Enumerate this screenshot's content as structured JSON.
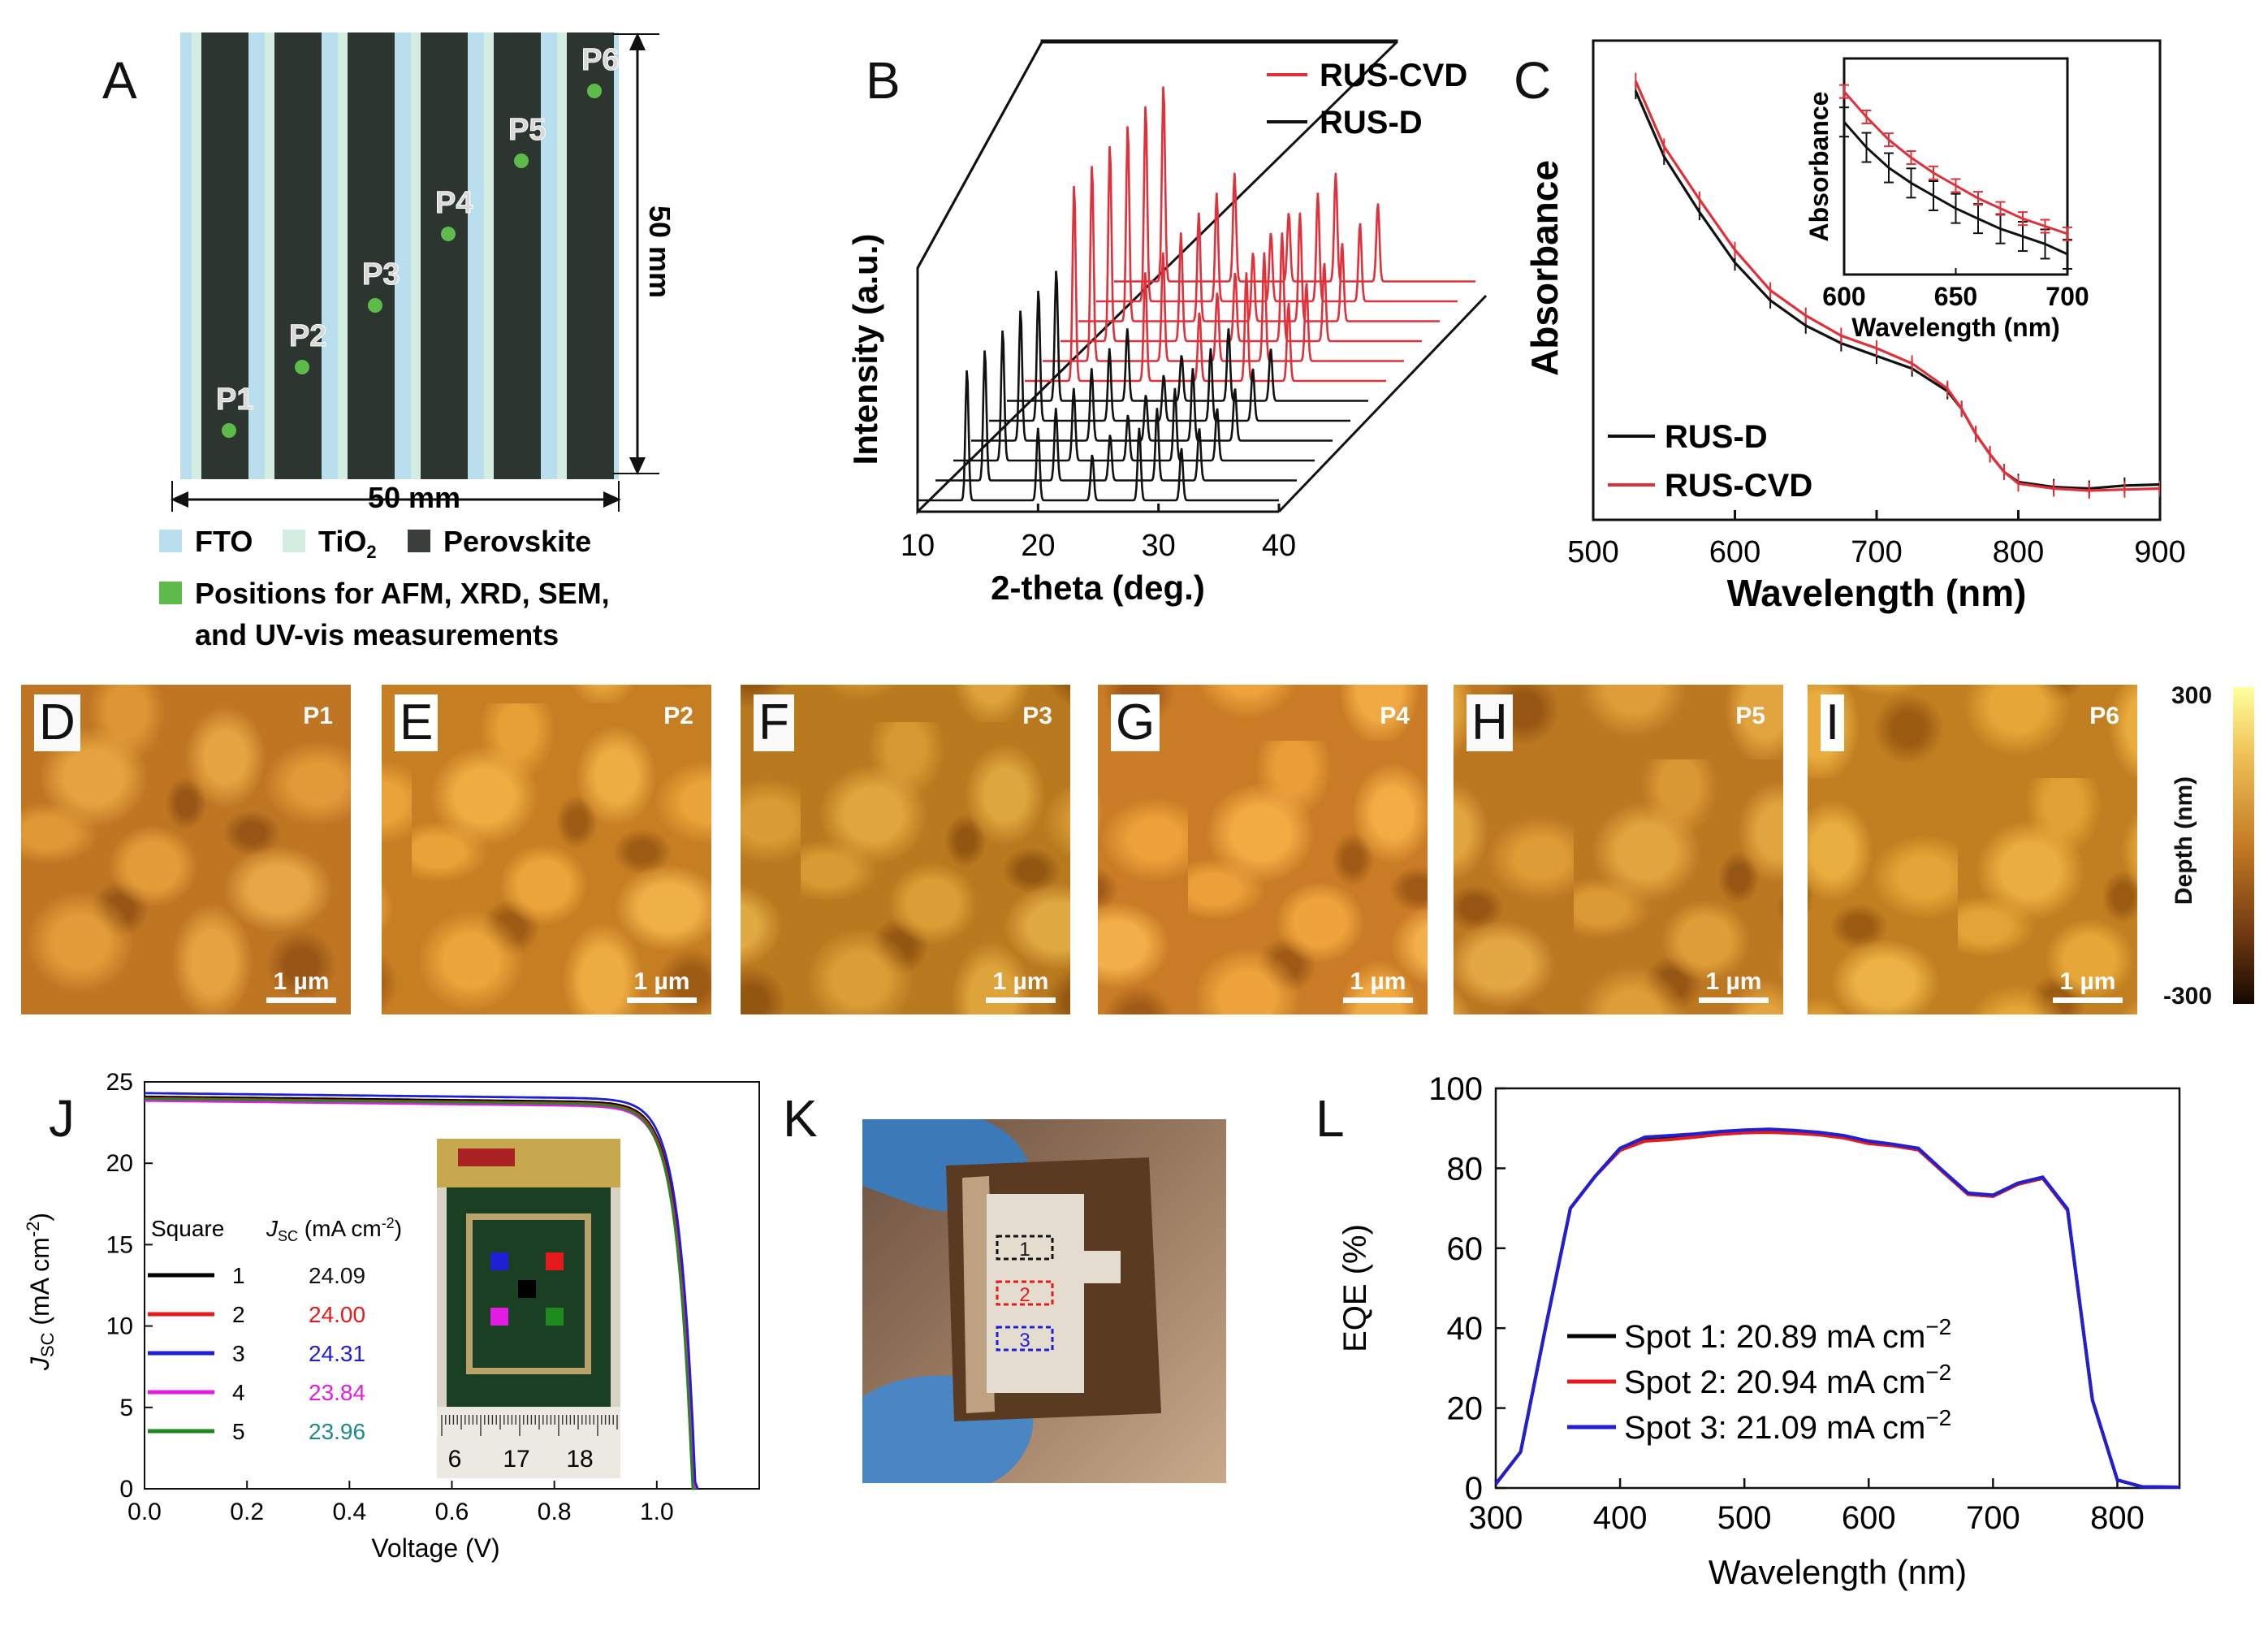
{
  "panels": {
    "A": {
      "label": "A",
      "positions": [
        "P1",
        "P2",
        "P3",
        "P4",
        "P5",
        "P6"
      ],
      "dim_h": "50 mm",
      "dim_v": "50 mm",
      "legend": {
        "fto": "FTO",
        "tio2": "TiO",
        "tio2_sub": "2",
        "perovskite": "Perovskite",
        "positions_line1": "Positions for AFM, XRD, SEM,",
        "positions_line2": "and UV-vis measurements"
      },
      "colors": {
        "fto": "#b9dfee",
        "tio2": "#d3eee0",
        "perovskite": "#2d3530",
        "dot": "#5dbb4a"
      }
    },
    "B": {
      "label": "B"
    },
    "C": {
      "label": "C"
    },
    "afm": [
      {
        "label": "D",
        "pos": "P1",
        "scale": "1 µm"
      },
      {
        "label": "E",
        "pos": "P2",
        "scale": "1 µm"
      },
      {
        "label": "F",
        "pos": "P3",
        "scale": "1 µm"
      },
      {
        "label": "G",
        "pos": "P4",
        "scale": "1 µm"
      },
      {
        "label": "H",
        "pos": "P5",
        "scale": "1 µm"
      },
      {
        "label": "I",
        "pos": "P6",
        "scale": "1 µm"
      }
    ],
    "colorbar": {
      "max": "300",
      "min": "-300",
      "label": "Depth (nm)"
    },
    "J": {
      "label": "J",
      "table_header_square": "Square",
      "table_header_jsc": "J",
      "table_header_jsc_sub": "SC",
      "table_header_unit": " (mA cm",
      "table_header_unit_sup": "-2",
      "table_header_close": ")",
      "ruler": [
        "6",
        "17",
        "18"
      ],
      "rows": [
        {
          "n": "1",
          "jsc": "24.09",
          "color": "#000000",
          "text_color": "#111111"
        },
        {
          "n": "2",
          "jsc": "24.00",
          "color": "#e41a1c",
          "text_color": "#e41a1c"
        },
        {
          "n": "3",
          "jsc": "24.31",
          "color": "#1f1fd6",
          "text_color": "#1f1fd6"
        },
        {
          "n": "4",
          "jsc": "23.84",
          "color": "#e31ce3",
          "text_color": "#e31ce3"
        },
        {
          "n": "5",
          "jsc": "23.96",
          "color": "#1e8a1e",
          "text_color": "#1e8a8a"
        }
      ]
    },
    "K": {
      "label": "K",
      "spots": [
        "1",
        "2",
        "3"
      ]
    },
    "L": {
      "label": "L"
    }
  },
  "chart_data": [
    {
      "panel": "B",
      "type": "line",
      "xlabel": "2-theta (deg.)",
      "ylabel": "Intensity (a.u.)",
      "xlim": [
        10,
        40
      ],
      "x_ticks": [
        10,
        20,
        30,
        40
      ],
      "legend": "top-right",
      "series": [
        {
          "name": "RUS-CVD",
          "color": "#e0303a",
          "traces": 6
        },
        {
          "name": "RUS-D",
          "color": "#111111",
          "traces": 6
        }
      ],
      "peaks_2theta": [
        14.1,
        20.0,
        24.5,
        28.4,
        31.9,
        40.6
      ]
    },
    {
      "panel": "C",
      "type": "line",
      "xlabel": "Wavelength (nm)",
      "ylabel": "Absorbance",
      "xlim": [
        500,
        900
      ],
      "x_ticks": [
        500,
        600,
        700,
        800,
        900
      ],
      "legend": "bottom-left",
      "series": [
        {
          "name": "RUS-D",
          "color": "#111111",
          "x": [
            530,
            550,
            575,
            600,
            625,
            650,
            675,
            700,
            725,
            750,
            760,
            770,
            780,
            790,
            800,
            825,
            850,
            875,
            900
          ],
          "y": [
            1.0,
            0.87,
            0.76,
            0.66,
            0.585,
            0.535,
            0.5,
            0.475,
            0.45,
            0.405,
            0.37,
            0.32,
            0.28,
            0.245,
            0.225,
            0.215,
            0.212,
            0.218,
            0.22
          ]
        },
        {
          "name": "RUS-CVD",
          "color": "#e0303a",
          "x": [
            530,
            550,
            575,
            600,
            625,
            650,
            675,
            700,
            725,
            750,
            760,
            770,
            780,
            790,
            800,
            825,
            850,
            875,
            900
          ],
          "y": [
            1.02,
            0.89,
            0.785,
            0.685,
            0.605,
            0.555,
            0.515,
            0.49,
            0.46,
            0.41,
            0.37,
            0.32,
            0.28,
            0.245,
            0.222,
            0.212,
            0.208,
            0.21,
            0.212
          ]
        }
      ],
      "inset": {
        "xlabel": "Wavelength (nm)",
        "ylabel": "Absorbance",
        "xlim": [
          600,
          700
        ],
        "x_ticks": [
          600,
          650,
          700
        ],
        "series": [
          {
            "name": "RUS-D",
            "color": "#111111",
            "x": [
              600,
              610,
              620,
              630,
              640,
              650,
              660,
              670,
              680,
              690,
              700
            ],
            "y": [
              0.8,
              0.7,
              0.62,
              0.56,
              0.51,
              0.46,
              0.42,
              0.38,
              0.35,
              0.32,
              0.28
            ]
          },
          {
            "name": "RUS-CVD",
            "color": "#e0303a",
            "x": [
              600,
              610,
              620,
              630,
              640,
              650,
              660,
              670,
              680,
              690,
              700
            ],
            "y": [
              0.92,
              0.82,
              0.73,
              0.66,
              0.6,
              0.55,
              0.5,
              0.46,
              0.42,
              0.39,
              0.36
            ]
          }
        ]
      }
    },
    {
      "panel": "J",
      "type": "line",
      "xlabel": "Voltage (V)",
      "ylabel_main": "J",
      "ylabel_sub": "SC",
      "ylabel_unit": " (mA cm",
      "ylabel_sup": "-2",
      "ylabel_close": ")",
      "xlim": [
        0.0,
        1.2
      ],
      "ylim": [
        0,
        25
      ],
      "x_ticks": [
        "0.0",
        "0.2",
        "0.4",
        "0.6",
        "0.8",
        "1.0"
      ],
      "y_ticks": [
        "0",
        "5",
        "10",
        "15",
        "20",
        "25"
      ],
      "series": [
        {
          "name": "1",
          "color": "#000000",
          "jsc": 24.09,
          "voc": 1.073
        },
        {
          "name": "2",
          "color": "#e41a1c",
          "jsc": 24.0,
          "voc": 1.072
        },
        {
          "name": "3",
          "color": "#1f1fd6",
          "jsc": 24.31,
          "voc": 1.076
        },
        {
          "name": "4",
          "color": "#e31ce3",
          "jsc": 23.84,
          "voc": 1.071
        },
        {
          "name": "5",
          "color": "#1e8a1e",
          "jsc": 23.96,
          "voc": 1.07
        }
      ]
    },
    {
      "panel": "L",
      "type": "line",
      "xlabel": "Wavelength (nm)",
      "ylabel": "EQE (%)",
      "xlim": [
        300,
        850
      ],
      "ylim": [
        0,
        100
      ],
      "x_ticks": [
        "300",
        "400",
        "500",
        "600",
        "700",
        "800"
      ],
      "y_ticks": [
        "0",
        "20",
        "40",
        "60",
        "80",
        "100"
      ],
      "legend": "bottom-left",
      "series": [
        {
          "name": "Spot 1: 20.89 mA cm",
          "sup": "−2",
          "color": "#000000",
          "x": [
            300,
            320,
            340,
            360,
            380,
            400,
            420,
            440,
            460,
            480,
            500,
            520,
            540,
            560,
            580,
            600,
            620,
            640,
            660,
            680,
            700,
            720,
            740,
            760,
            780,
            800,
            820,
            850
          ],
          "y": [
            1,
            9,
            40,
            70,
            78,
            85,
            87.5,
            87.8,
            88.2,
            88.8,
            89.3,
            89.5,
            89.2,
            88.8,
            88.0,
            86.5,
            85.8,
            84.8,
            79.0,
            73.5,
            73.0,
            76.0,
            77.5,
            69.5,
            22.0,
            2.0,
            0.3,
            0.2
          ]
        },
        {
          "name": "Spot 2: 20.94 mA cm",
          "sup": "−2",
          "color": "#e41a1c",
          "x": [
            300,
            320,
            340,
            360,
            380,
            400,
            420,
            440,
            460,
            480,
            500,
            520,
            540,
            560,
            580,
            600,
            620,
            640,
            660,
            680,
            700,
            720,
            740,
            760,
            780,
            800,
            820,
            850
          ],
          "y": [
            1,
            9,
            40,
            70,
            78,
            84.5,
            86.8,
            87.2,
            87.8,
            88.5,
            88.9,
            89.0,
            88.8,
            88.4,
            87.6,
            86.2,
            85.6,
            84.6,
            79.0,
            73.5,
            73.0,
            76.0,
            77.6,
            69.5,
            22.0,
            2.0,
            0.3,
            0.2
          ]
        },
        {
          "name": "Spot 3: 21.09 mA cm",
          "sup": "−2",
          "color": "#1f1fd6",
          "x": [
            300,
            320,
            340,
            360,
            380,
            400,
            420,
            440,
            460,
            480,
            500,
            520,
            540,
            560,
            580,
            600,
            620,
            640,
            660,
            680,
            700,
            720,
            740,
            760,
            780,
            800,
            820,
            850
          ],
          "y": [
            1,
            9,
            40,
            70,
            78,
            85,
            87.8,
            88.2,
            88.6,
            89.2,
            89.6,
            89.8,
            89.5,
            89.0,
            88.2,
            86.8,
            86.0,
            85.0,
            79.3,
            73.8,
            73.3,
            76.3,
            77.8,
            69.8,
            22.0,
            2.0,
            0.3,
            0.2
          ]
        }
      ]
    }
  ]
}
